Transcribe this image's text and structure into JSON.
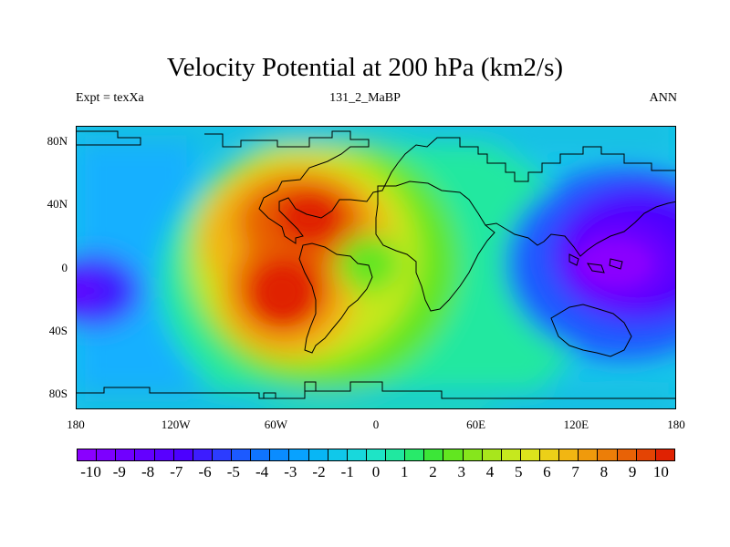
{
  "title": "Velocity Potential at 200 hPa (km2/s)",
  "left_label": "Expt = texXa",
  "center_label": "131_2_MaBP",
  "right_label": "ANN",
  "chart_data": {
    "type": "heatmap",
    "projection": "cylindrical-equidistant",
    "variable": "velocity potential",
    "level": "200 hPa",
    "units": "km2/s",
    "lon_range": [
      -180,
      180
    ],
    "lat_range": [
      -90,
      90
    ],
    "y_ticks": [
      {
        "value": 80,
        "label": "80N"
      },
      {
        "value": 40,
        "label": "40N"
      },
      {
        "value": 0,
        "label": "0"
      },
      {
        "value": -40,
        "label": "40S"
      },
      {
        "value": -80,
        "label": "80S"
      }
    ],
    "x_ticks": [
      {
        "value": -180,
        "label": "180"
      },
      {
        "value": -120,
        "label": "120W"
      },
      {
        "value": -60,
        "label": "60W"
      },
      {
        "value": 0,
        "label": "0"
      },
      {
        "value": 60,
        "label": "60E"
      },
      {
        "value": 120,
        "label": "120E"
      },
      {
        "value": 180,
        "label": "180"
      }
    ],
    "field_features": [
      {
        "kind": "maximum",
        "lon": -40,
        "lat": 25,
        "value": 10
      },
      {
        "kind": "maximum",
        "lon": -50,
        "lat": -20,
        "value": 10
      },
      {
        "kind": "minimum",
        "lon": 140,
        "lat": 5,
        "value": -10
      },
      {
        "kind": "minimum",
        "lon": -178,
        "lat": -18,
        "value": -10
      }
    ],
    "colorbar": {
      "min": -10.5,
      "max": 10.5,
      "colors": [
        "#8a00ff",
        "#7d00ff",
        "#7000ff",
        "#6400ff",
        "#5800ff",
        "#4c00ff",
        "#3d1cff",
        "#2c3cff",
        "#1c5aff",
        "#0f74ff",
        "#0a8cff",
        "#08a2ff",
        "#08b6f5",
        "#10c8ea",
        "#18d8dc",
        "#1ee4c6",
        "#20e8a0",
        "#28ea6a",
        "#3ce638",
        "#62e620",
        "#86e61c",
        "#a8e61c",
        "#c6e81e",
        "#dde31c",
        "#ecd018",
        "#f2b612",
        "#f09a0c",
        "#ec7e08",
        "#e86206",
        "#e44404",
        "#e02202"
      ],
      "labels": [
        "-10",
        "-9",
        "-8",
        "-7",
        "-6",
        "-5",
        "-4",
        "-3",
        "-2",
        "-1",
        "0",
        "1",
        "2",
        "3",
        "4",
        "5",
        "6",
        "7",
        "8",
        "9",
        "10"
      ]
    }
  }
}
